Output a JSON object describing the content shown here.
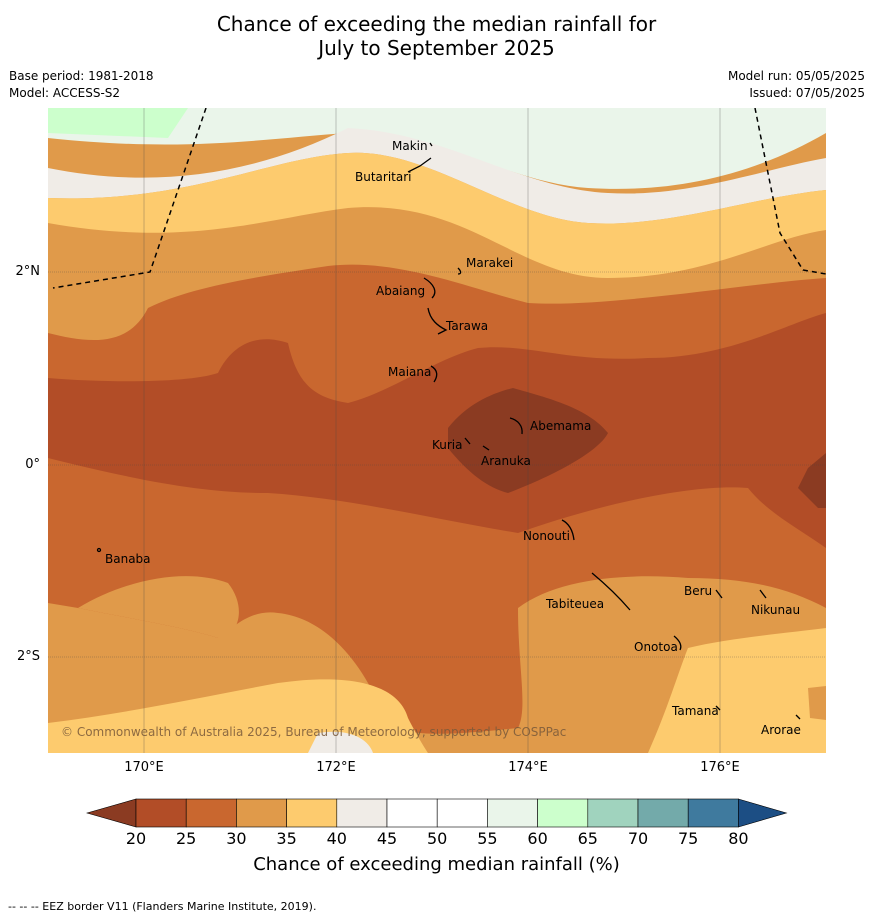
{
  "title": {
    "line1": "Chance of exceeding the median rainfall for",
    "line2": "July to September 2025"
  },
  "meta": {
    "base_period": "Base period: 1981-2018",
    "model": "Model: ACCESS-S2",
    "model_run": "Model run: 05/05/2025",
    "issued": "Issued: 07/05/2025"
  },
  "axes": {
    "x_ticks": [
      "170°E",
      "172°E",
      "174°E",
      "176°E"
    ],
    "y_ticks": [
      "2°N",
      "0°",
      "2°S"
    ]
  },
  "islands": [
    "Makin",
    "Butaritari",
    "Marakei",
    "Abaiang",
    "Tarawa",
    "Maiana",
    "Abemama",
    "Kuria",
    "Aranuka",
    "Nonouti",
    "Banaba",
    "Tabiteuea",
    "Beru",
    "Nikunau",
    "Onotoa",
    "Tamana",
    "Arorae"
  ],
  "copyright": "© Commonwealth of Australia 2025, Bureau of Meteorology, supported by COSPPac",
  "colorbar": {
    "ticks": [
      "20",
      "25",
      "30",
      "35",
      "40",
      "45",
      "50",
      "55",
      "60",
      "65",
      "70",
      "75",
      "80"
    ],
    "label": "Chance of exceeding median rainfall (%)",
    "colors": [
      "#b24d27",
      "#c9672f",
      "#e09a4a",
      "#fdcb6e",
      "#f0ece7",
      "#ffffff",
      "#ffffff",
      "#eaf5ea",
      "#ccffcc",
      "#a0d3be",
      "#73aaaa",
      "#3f7a9e"
    ],
    "under_color": "#8b3b22",
    "over_color": "#1c4e84"
  },
  "footnote": "--  --  -- EEZ border V11 (Flanders Marine Institute, 2019)."
}
